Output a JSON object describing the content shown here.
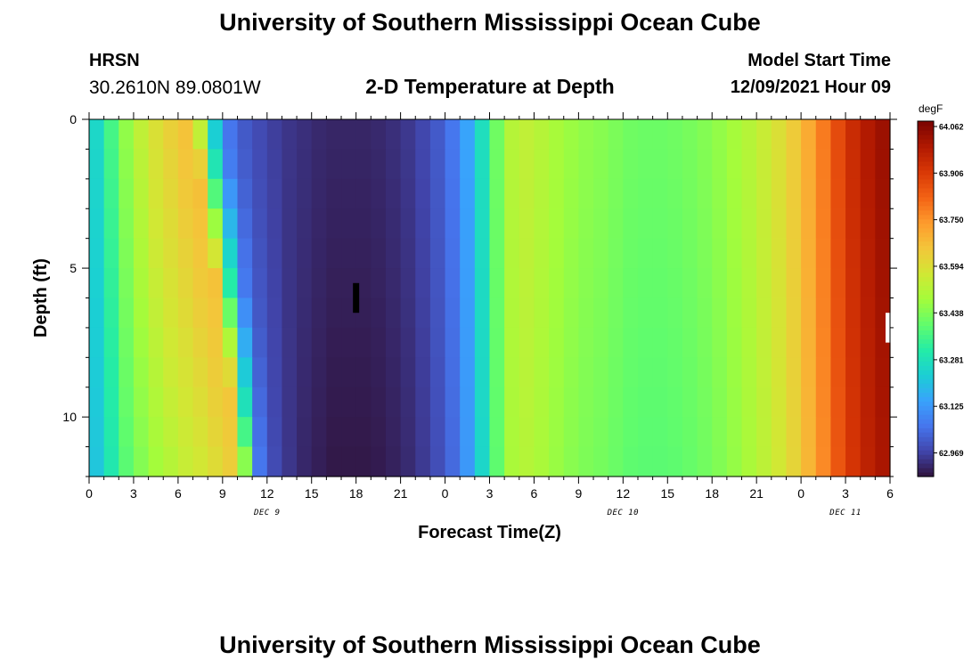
{
  "header": {
    "title": "University of Southern Mississippi Ocean Cube",
    "station": "HRSN",
    "coords": "30.2610N  89.0801W",
    "subtitle": "2-D Temperature at Depth",
    "start_label": "Model Start Time",
    "start_value": "12/09/2021 Hour 09"
  },
  "footer": {
    "title": "University of Southern Mississippi Ocean Cube"
  },
  "chart_data": {
    "type": "heatmap",
    "xlabel": "Forecast Time(Z)",
    "ylabel": "Depth (ft)",
    "x_tick_labels": [
      "0",
      "3",
      "6",
      "9",
      "12",
      "15",
      "18",
      "21",
      "0",
      "3",
      "6",
      "9",
      "12",
      "15",
      "18",
      "21",
      "0",
      "3",
      "6"
    ],
    "x_day_labels": [
      {
        "label": "DEC 9",
        "hour": 12
      },
      {
        "label": "DEC 10",
        "hour": 36
      },
      {
        "label": "DEC 11",
        "hour": 51
      }
    ],
    "xlim_hours": [
      0,
      54
    ],
    "y_tick_labels": [
      "0",
      "5",
      "10"
    ],
    "y_ticks": [
      0,
      5,
      10
    ],
    "ylim": [
      0,
      12
    ],
    "y_inverted": true,
    "colorbar": {
      "unit": "degF",
      "labels": [
        "64.062",
        "63.906",
        "63.750",
        "63.594",
        "63.438",
        "63.281",
        "63.125",
        "62.969"
      ],
      "min": 62.89,
      "max": 64.08,
      "colormap": [
        "#30123b",
        "#4145ab",
        "#4675ed",
        "#39a2fc",
        "#1bcfd4",
        "#24eca6",
        "#61fc6c",
        "#a4fc3b",
        "#d1e834",
        "#f3c63a",
        "#fe9b2d",
        "#f36315",
        "#d93806",
        "#b11901",
        "#7a0402"
      ]
    },
    "time_hours": [
      0,
      1,
      2,
      3,
      4,
      5,
      6,
      7,
      8,
      9,
      10,
      11,
      12,
      13,
      14,
      15,
      16,
      17,
      18,
      19,
      20,
      21,
      22,
      23,
      24,
      25,
      26,
      27,
      28,
      29,
      30,
      31,
      32,
      33,
      34,
      35,
      36,
      37,
      38,
      39,
      40,
      41,
      42,
      43,
      44,
      45,
      46,
      47,
      48,
      49,
      50,
      51,
      52,
      53,
      54
    ],
    "temperature_profile_degF": [
      63.19,
      63.29,
      63.41,
      63.49,
      63.56,
      63.6,
      63.64,
      63.66,
      63.3,
      63.07,
      63.01,
      62.98,
      62.96,
      62.94,
      62.93,
      62.92,
      62.91,
      62.91,
      62.91,
      62.91,
      62.92,
      62.93,
      62.95,
      62.98,
      63.02,
      63.08,
      63.19,
      63.33,
      63.48,
      63.53,
      63.52,
      63.49,
      63.47,
      63.45,
      63.44,
      63.43,
      63.41,
      63.4,
      63.4,
      63.4,
      63.41,
      63.42,
      63.44,
      63.46,
      63.49,
      63.52,
      63.56,
      63.6,
      63.66,
      63.73,
      63.82,
      63.9,
      63.96,
      64.0,
      64.03
    ],
    "depth_offset_note": "Temperature varies slightly with depth; front near hour 8 tilts later with depth; near-surface warmer by ~0.02 degF.",
    "markers": [
      {
        "hour": 18,
        "depth": [
          5.5,
          6.5
        ],
        "color": "#000000"
      },
      {
        "hour": 54,
        "depth": [
          6.5,
          7.5
        ],
        "color": "#ffffff"
      }
    ]
  }
}
